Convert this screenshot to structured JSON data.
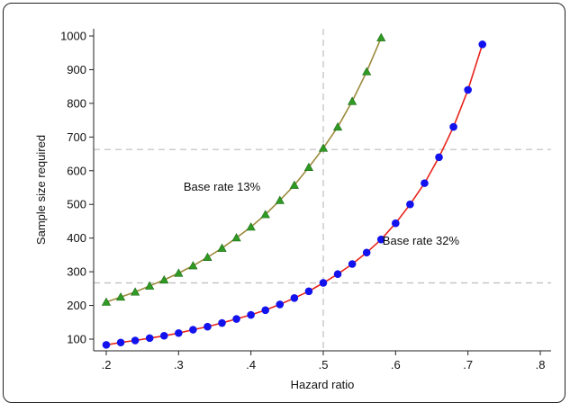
{
  "chart_data": {
    "type": "line",
    "xlabel": "Hazard ratio",
    "ylabel": "Sample size required",
    "xlim": [
      0.2,
      0.8
    ],
    "ylim": [
      65,
      1000
    ],
    "x_ticks": [
      0.2,
      0.3,
      0.4,
      0.5,
      0.6,
      0.7,
      0.8
    ],
    "x_tick_labels": [
      ".2",
      ".3",
      ".4",
      ".5",
      ".6",
      ".7",
      ".8"
    ],
    "y_ticks": [
      100,
      200,
      300,
      400,
      500,
      600,
      700,
      800,
      900,
      1000
    ],
    "y_tick_labels": [
      "100",
      "200",
      "300",
      "400",
      "500",
      "600",
      "700",
      "800",
      "900",
      "1000"
    ],
    "grid": false,
    "reference_lines": {
      "vertical_x": 0.5,
      "horizontal_y": [
        663,
        267
      ]
    },
    "annotations": [
      {
        "text": "Base rate 13%",
        "x": 0.36,
        "y": 540
      },
      {
        "text": "Base rate 32%",
        "x": 0.635,
        "y": 380
      }
    ],
    "series": [
      {
        "marker": "triangle",
        "color": "#9c8a3c",
        "marker_color": "#2f9a24",
        "x": [
          0.2,
          0.22,
          0.24,
          0.26,
          0.28,
          0.3,
          0.32,
          0.34,
          0.36,
          0.38,
          0.4,
          0.42,
          0.44,
          0.46,
          0.48,
          0.5,
          0.52,
          0.54,
          0.56,
          0.58
        ],
        "values": [
          210,
          225,
          240,
          258,
          276,
          296,
          318,
          343,
          370,
          401,
          433,
          470,
          512,
          557,
          610,
          667,
          730,
          806,
          894,
          995
        ]
      },
      {
        "marker": "circle",
        "color": "#e8231a",
        "marker_color": "#1212ee",
        "x": [
          0.2,
          0.22,
          0.24,
          0.26,
          0.28,
          0.3,
          0.32,
          0.34,
          0.36,
          0.38,
          0.4,
          0.42,
          0.44,
          0.46,
          0.48,
          0.5,
          0.52,
          0.54,
          0.56,
          0.58,
          0.6,
          0.62,
          0.64,
          0.66,
          0.68,
          0.7,
          0.72
        ],
        "values": [
          83,
          90,
          96,
          103,
          110,
          118,
          128,
          137,
          148,
          160,
          172,
          186,
          203,
          222,
          242,
          267,
          293,
          323,
          357,
          396,
          444,
          500,
          563,
          640,
          730,
          840,
          975
        ]
      }
    ]
  }
}
